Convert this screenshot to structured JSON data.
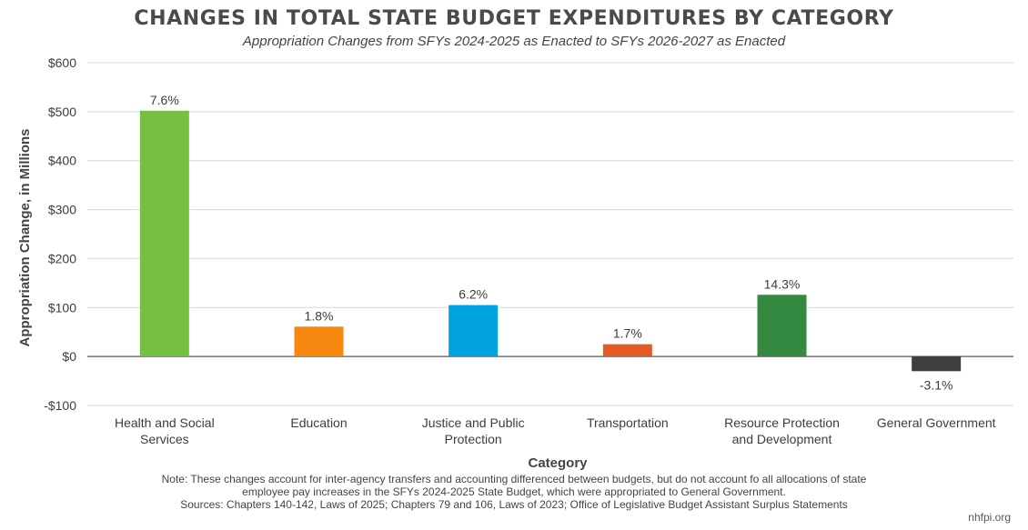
{
  "chart_data": {
    "type": "bar",
    "title": "CHANGES IN TOTAL STATE BUDGET EXPENDITURES BY CATEGORY",
    "subtitle": "Appropriation Changes from SFYs 2024-2025 as Enacted to SFYs 2026-2027 as Enacted",
    "xlabel": "Category",
    "ylabel": "Appropriation Change, in Millions",
    "ylim": [
      -100,
      600
    ],
    "yticks": [
      {
        "value": -100,
        "label": "-$100"
      },
      {
        "value": 0,
        "label": "$0"
      },
      {
        "value": 100,
        "label": "$100"
      },
      {
        "value": 200,
        "label": "$200"
      },
      {
        "value": 300,
        "label": "$300"
      },
      {
        "value": 400,
        "label": "$400"
      },
      {
        "value": 500,
        "label": "$500"
      },
      {
        "value": 600,
        "label": "$600"
      }
    ],
    "grid": true,
    "categories": [
      [
        "Health and Social",
        "Services"
      ],
      [
        "Education"
      ],
      [
        "Justice and Public",
        "Protection"
      ],
      [
        "Transportation"
      ],
      [
        "Resource Protection",
        "and Development"
      ],
      [
        "General Government"
      ]
    ],
    "values": [
      502,
      61,
      105,
      25,
      126,
      -30
    ],
    "data_labels": [
      "7.6%",
      "1.8%",
      "6.2%",
      "1.7%",
      "14.3%",
      "-3.1%"
    ],
    "colors": [
      "#76bf43",
      "#f7880f",
      "#00a3e0",
      "#e35a24",
      "#348a41",
      "#3f3f3f"
    ]
  },
  "notes": {
    "line1": "Note: These changes account for inter-agency transfers and accounting differenced between budgets, but do not account fo all allocations of state",
    "line2": "employee pay increases in the SFYs 2024-2025 State Budget, which were appropriated to General Government.",
    "line3": "Sources: Chapters 140-142, Laws of 2025; Chapters 79 and 106, Laws of 2023; Office of Legislative Budget Assistant Surplus Statements"
  },
  "brand": "nhfpi.org"
}
